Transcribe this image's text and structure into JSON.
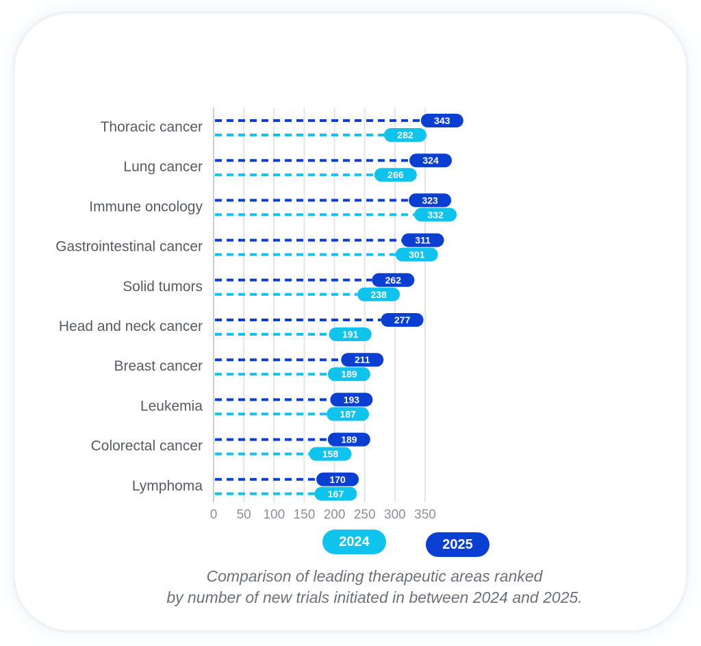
{
  "colors": {
    "series_2025": "#0a3fd1",
    "series_2024": "#0fc3ec",
    "grid": "#e2e4e8",
    "category_text": "#555a63",
    "tick_text": "#8a8f98",
    "caption_text": "#6b7079"
  },
  "chart_data": {
    "type": "bar",
    "orientation": "horizontal",
    "style": "dashed-lollipop",
    "categories": [
      "Thoracic cancer",
      "Lung cancer",
      "Immune oncology",
      "Gastrointestinal cancer",
      "Solid tumors",
      "Head and neck cancer",
      "Breast cancer",
      "Leukemia",
      "Colorectal cancer",
      "Lymphoma"
    ],
    "series": [
      {
        "name": "2025",
        "values": [
          343,
          324,
          323,
          311,
          262,
          277,
          211,
          193,
          189,
          170
        ]
      },
      {
        "name": "2024",
        "values": [
          282,
          266,
          332,
          301,
          238,
          191,
          189,
          187,
          158,
          167
        ]
      }
    ],
    "xlim": [
      0,
      350
    ],
    "xticks": [
      0,
      50,
      100,
      150,
      200,
      250,
      300,
      350
    ],
    "grid": true,
    "legend": [
      "2024",
      "2025"
    ],
    "legend_position": "bottom",
    "title": "",
    "xlabel": "",
    "ylabel": ""
  },
  "legend": {
    "label_2024": "2024",
    "label_2025": "2025"
  },
  "caption": {
    "line1": "Comparison of leading therapeutic areas ranked",
    "line2": "by number of new trials initiated in between 2024 and 2025."
  }
}
